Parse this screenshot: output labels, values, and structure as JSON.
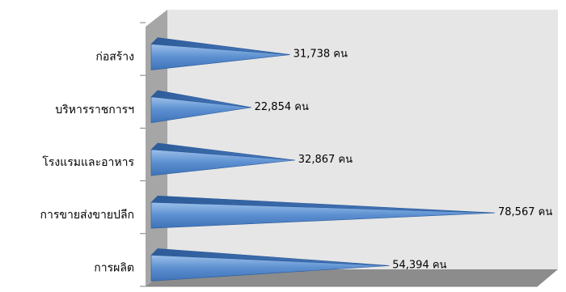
{
  "chart_data": {
    "type": "bar",
    "orientation": "horizontal",
    "style": "3d-cone",
    "title": "",
    "xlabel": "",
    "ylabel": "",
    "categories": [
      "ก่อสร้าง",
      "บริหารราชการฯ",
      "โรงแรมและอาหาร",
      "การขายส่งขายปลีก",
      "การผลิต"
    ],
    "values": [
      31738,
      22854,
      32867,
      78567,
      54394
    ],
    "data_labels": [
      "31,738 คน",
      "22,854 คน",
      "32,867 คน",
      "78,567 คน",
      "54,394 คน"
    ],
    "xlim": [
      0,
      80000
    ],
    "grid": false,
    "legend": "none",
    "colors": {
      "bar_light": "#8db3e2",
      "bar_dark": "#1f4e8c",
      "bar_edge": "#2a5a9a",
      "wall": "#e6e6e6",
      "side_wall": "#a6a6a6",
      "floor": "#8c8c8c",
      "tick_line": "#808080"
    }
  }
}
